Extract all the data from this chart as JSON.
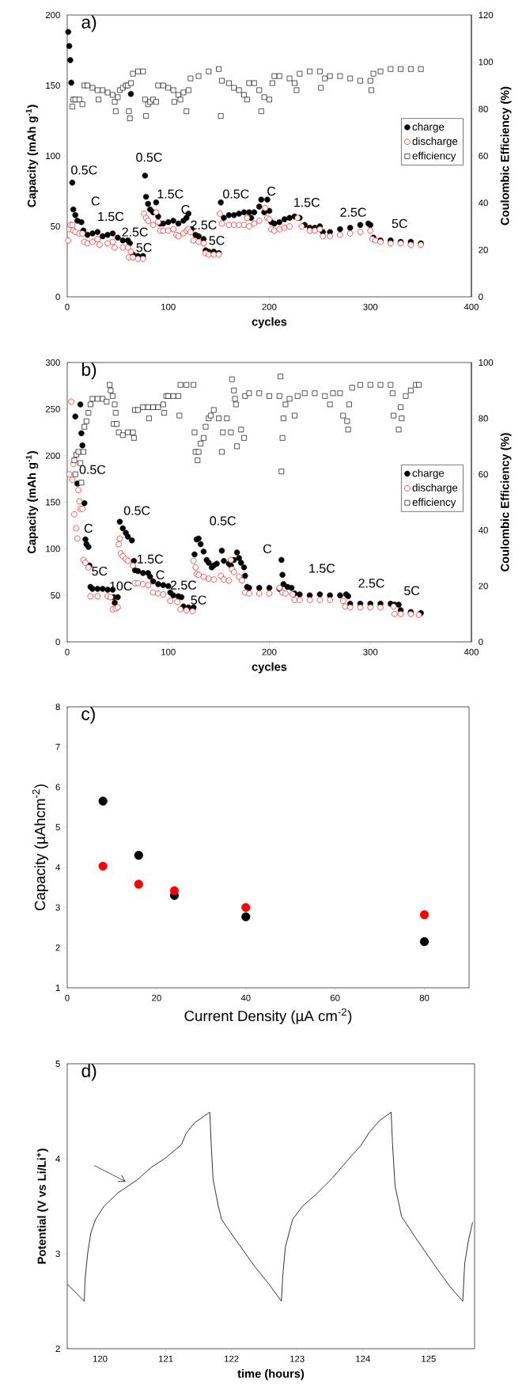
{
  "chart_data": [
    {
      "type": "scatter",
      "title": "a)",
      "xlabel": "cycles",
      "ylabel": "Capacity (mAh g$^{-1}$)",
      "y2label": "Coulombic Efficiency (%)",
      "xlim": [
        0,
        400
      ],
      "xticks": [
        0,
        100,
        200,
        300,
        400
      ],
      "ylim": [
        0,
        200
      ],
      "yticks": [
        0,
        50,
        100,
        150,
        200
      ],
      "y2lim": [
        0,
        120
      ],
      "y2ticks": [
        0,
        20,
        40,
        60,
        80,
        100,
        120
      ],
      "legend": "right",
      "series": [
        {
          "name": "charge",
          "color": "#000000",
          "marker": "circle",
          "x": [
            1,
            2,
            3,
            4,
            5,
            6,
            8,
            10,
            14,
            16,
            20,
            25,
            30,
            35,
            40,
            45,
            50,
            55,
            60,
            62,
            63,
            65,
            70,
            75,
            77,
            78,
            80,
            82,
            85,
            88,
            90,
            92,
            95,
            100,
            105,
            110,
            115,
            118,
            120,
            123,
            127,
            130,
            135,
            137,
            140,
            145,
            150,
            152,
            155,
            160,
            165,
            170,
            175,
            180,
            182,
            185,
            190,
            192,
            195,
            198,
            200,
            202,
            205,
            210,
            215,
            220,
            225,
            230,
            235,
            240,
            245,
            250,
            253,
            260,
            270,
            280,
            290,
            298,
            300,
            303,
            310,
            320,
            330,
            340,
            350
          ],
          "values": [
            188,
            178,
            168,
            152,
            81,
            62,
            58,
            54,
            53,
            47,
            44,
            45,
            46,
            43,
            44,
            45,
            42,
            40,
            40,
            38,
            144,
            30,
            29,
            29,
            86,
            71,
            66,
            62,
            60,
            67,
            57,
            52,
            52,
            53,
            54,
            52,
            54,
            56,
            59,
            48,
            44,
            43,
            41,
            33,
            32,
            32,
            31,
            67,
            56,
            58,
            58,
            59,
            60,
            60,
            56,
            60,
            64,
            69,
            60,
            69,
            61,
            53,
            52,
            53,
            55,
            56,
            57,
            56,
            51,
            49,
            49,
            50,
            46,
            46,
            48,
            49,
            51,
            52,
            51,
            42,
            40,
            40,
            39,
            39,
            38
          ]
        },
        {
          "name": "discharge",
          "color": "#ff0000",
          "marker": "circle",
          "x": [
            1,
            2,
            3,
            5,
            6,
            8,
            12,
            15,
            17,
            20,
            25,
            30,
            32,
            40,
            45,
            47,
            55,
            60,
            61,
            63,
            65,
            70,
            75,
            76,
            78,
            80,
            85,
            88,
            90,
            92,
            95,
            100,
            105,
            108,
            110,
            115,
            118,
            120,
            122,
            125,
            130,
            135,
            137,
            140,
            145,
            150,
            151,
            153,
            160,
            165,
            170,
            175,
            178,
            180,
            185,
            190,
            196,
            198,
            200,
            202,
            205,
            210,
            215,
            220,
            228,
            232,
            240,
            245,
            250,
            253,
            260,
            270,
            280,
            290,
            300,
            302,
            305,
            310,
            320,
            330,
            340,
            350
          ],
          "values": [
            40,
            48,
            51,
            51,
            47,
            46,
            45,
            45,
            39,
            38,
            39,
            41,
            37,
            38,
            39,
            35,
            35,
            35,
            28,
            32,
            28,
            27,
            27,
            59,
            56,
            54,
            51,
            60,
            53,
            47,
            47,
            47,
            48,
            44,
            43,
            45,
            47,
            48,
            46,
            40,
            39,
            38,
            31,
            30,
            30,
            30,
            59,
            52,
            51,
            51,
            51,
            51,
            56,
            50,
            52,
            54,
            63,
            56,
            55,
            48,
            47,
            48,
            49,
            50,
            56,
            50,
            47,
            47,
            48,
            43,
            43,
            44,
            45,
            46,
            47,
            41,
            40,
            39,
            38,
            38,
            37,
            37
          ]
        },
        {
          "name": "efficiency",
          "color": "#000000",
          "marker": "square",
          "axis": "y2",
          "x": [
            5,
            6,
            8,
            12,
            15,
            17,
            20,
            25,
            30,
            31,
            35,
            40,
            45,
            47,
            48,
            50,
            52,
            55,
            58,
            60,
            61,
            62,
            63,
            65,
            70,
            75,
            77,
            78,
            80,
            82,
            85,
            88,
            90,
            95,
            100,
            105,
            106,
            110,
            112,
            115,
            118,
            120,
            122,
            130,
            140,
            150,
            152,
            153,
            160,
            165,
            170,
            175,
            178,
            180,
            185,
            190,
            192,
            195,
            200,
            203,
            205,
            210,
            220,
            225,
            227,
            230,
            240,
            250,
            251,
            255,
            260,
            270,
            280,
            290,
            300,
            301,
            303,
            310,
            320,
            330,
            340,
            350
          ],
          "values": [
            81,
            84,
            84,
            84,
            82,
            90,
            90,
            89,
            88,
            84,
            88,
            87,
            86,
            83,
            79,
            85,
            88,
            89,
            90,
            90,
            79,
            76,
            91,
            95,
            96,
            96,
            84,
            77,
            82,
            83,
            84,
            83,
            90,
            90,
            89,
            88,
            83,
            86,
            84,
            87,
            79,
            88,
            93,
            94,
            96,
            97,
            77,
            92,
            91,
            89,
            88,
            86,
            84,
            91,
            91,
            88,
            79,
            85,
            84,
            91,
            94,
            94,
            93,
            91,
            88,
            95,
            96,
            96,
            89,
            93,
            94,
            94,
            93,
            92,
            92,
            88,
            95,
            96,
            97,
            97,
            97,
            97
          ]
        }
      ],
      "annotations": [
        "0.5C",
        "C",
        "1.5C",
        "2.5C",
        "5C",
        "0.5C",
        "1.5C",
        "C",
        "2.5C",
        "5C",
        "0.5C",
        "C",
        "1.5C",
        "2.5C",
        "5C"
      ]
    },
    {
      "type": "scatter",
      "title": "b)",
      "xlabel": "cycles",
      "ylabel": "Capacity (mAh g$^{-1}$)",
      "y2label": "Coulombic Efficiency (%)",
      "xlim": [
        0,
        400
      ],
      "xticks": [
        0,
        100,
        200,
        300,
        400
      ],
      "ylim": [
        0,
        300
      ],
      "yticks": [
        0,
        50,
        100,
        150,
        200,
        250,
        300
      ],
      "y2lim": [
        0,
        100
      ],
      "y2ticks": [
        0,
        20,
        40,
        60,
        80,
        100
      ],
      "legend": "right",
      "series": [
        {
          "name": "charge",
          "color": "#000000",
          "marker": "circle",
          "x": [
            8,
            10,
            13,
            14,
            15,
            17,
            18,
            19,
            21,
            22,
            23,
            25,
            30,
            35,
            40,
            45,
            46,
            47,
            50,
            52,
            55,
            58,
            60,
            64,
            66,
            67,
            70,
            75,
            80,
            82,
            85,
            90,
            95,
            100,
            102,
            105,
            110,
            113,
            115,
            120,
            125,
            126,
            128,
            130,
            132,
            135,
            138,
            140,
            143,
            145,
            148,
            153,
            155,
            160,
            162,
            165,
            168,
            170,
            172,
            175,
            176,
            178,
            180,
            190,
            200,
            210,
            212,
            213,
            214,
            218,
            222,
            225,
            230,
            240,
            250,
            260,
            270,
            276,
            278,
            280,
            290,
            300,
            310,
            320,
            324,
            328,
            330,
            340,
            350
          ],
          "values": [
            242,
            170,
            255,
            224,
            211,
            149,
            110,
            105,
            102,
            82,
            59,
            57,
            57,
            57,
            56,
            56,
            48,
            42,
            48,
            129,
            122,
            117,
            113,
            109,
            87,
            77,
            76,
            74,
            74,
            70,
            65,
            62,
            61,
            60,
            53,
            50,
            49,
            48,
            38,
            37,
            37,
            94,
            110,
            111,
            105,
            97,
            88,
            85,
            80,
            82,
            84,
            98,
            87,
            84,
            82,
            88,
            96,
            90,
            85,
            80,
            71,
            59,
            58,
            58,
            58,
            57,
            88,
            72,
            62,
            59,
            58,
            52,
            51,
            50,
            51,
            50,
            50,
            51,
            49,
            41,
            41,
            41,
            41,
            41,
            40,
            40,
            34,
            32,
            31
          ]
        },
        {
          "name": "discharge",
          "color": "#ff0000",
          "marker": "circle",
          "x": [
            2,
            4,
            5,
            6,
            7,
            9,
            10,
            11,
            12,
            13,
            15,
            16,
            18,
            21,
            23,
            30,
            40,
            43,
            45,
            48,
            50,
            51,
            52,
            53,
            55,
            58,
            60,
            65,
            67,
            70,
            75,
            80,
            85,
            90,
            95,
            102,
            109,
            112,
            118,
            124,
            125,
            127,
            128,
            130,
            135,
            140,
            145,
            152,
            155,
            160,
            162,
            163,
            165,
            170,
            173,
            176,
            180,
            190,
            200,
            210,
            213,
            216,
            223,
            225,
            230,
            240,
            250,
            260,
            273,
            275,
            280,
            290,
            300,
            310,
            323,
            324,
            330,
            340,
            348
          ],
          "values": [
            180,
            258,
            174,
            191,
            137,
            122,
            111,
            163,
            151,
            143,
            143,
            88,
            85,
            80,
            49,
            49,
            49,
            48,
            35,
            36,
            37,
            105,
            111,
            95,
            92,
            89,
            87,
            82,
            63,
            63,
            62,
            61,
            53,
            52,
            51,
            44,
            43,
            35,
            34,
            33,
            87,
            80,
            73,
            72,
            70,
            68,
            67,
            71,
            67,
            66,
            88,
            78,
            75,
            70,
            66,
            53,
            52,
            52,
            52,
            58,
            53,
            52,
            51,
            45,
            45,
            45,
            45,
            45,
            44,
            38,
            37,
            37,
            37,
            37,
            38,
            30,
            30,
            30,
            29
          ]
        },
        {
          "name": "efficiency",
          "color": "#000000",
          "marker": "square",
          "axis": "y2",
          "x": [
            7,
            8,
            9,
            11,
            13,
            14,
            16,
            17,
            19,
            21,
            23,
            25,
            30,
            35,
            39,
            42,
            43,
            45,
            46,
            47,
            48,
            49,
            51,
            55,
            60,
            65,
            66,
            67,
            70,
            75,
            80,
            81,
            85,
            90,
            95,
            96,
            98,
            100,
            105,
            110,
            111,
            112,
            118,
            125,
            126,
            127,
            129,
            130,
            132,
            135,
            137,
            140,
            142,
            145,
            150,
            153,
            154,
            158,
            162,
            163,
            165,
            166,
            167,
            168,
            172,
            175,
            176,
            180,
            190,
            200,
            210,
            211,
            212,
            213,
            214,
            216,
            220,
            225,
            228,
            235,
            245,
            255,
            260,
            263,
            270,
            273,
            277,
            278,
            279,
            282,
            290,
            300,
            310,
            320,
            322,
            323,
            328,
            330,
            331,
            335,
            340,
            345,
            348
          ],
          "values": [
            65,
            60,
            67,
            68,
            64,
            57,
            68,
            77,
            79,
            82,
            85,
            87,
            87,
            87,
            86,
            92,
            90,
            88,
            78,
            85,
            82,
            78,
            75,
            74,
            75,
            75,
            73,
            83,
            83,
            84,
            84,
            80,
            84,
            84,
            85,
            82,
            88,
            88,
            88,
            88,
            81,
            92,
            92,
            92,
            75,
            68,
            65,
            68,
            71,
            73,
            77,
            80,
            81,
            83,
            80,
            68,
            75,
            80,
            75,
            94,
            90,
            87,
            85,
            70,
            76,
            73,
            88,
            89,
            89,
            88,
            88,
            95,
            61,
            73,
            80,
            85,
            87,
            81,
            88,
            89,
            89,
            88,
            85,
            89,
            89,
            81,
            79,
            76,
            85,
            91,
            92,
            92,
            92,
            92,
            89,
            81,
            76,
            84,
            80,
            88,
            90,
            92,
            92
          ]
        }
      ],
      "annotations": [
        "0.5C",
        "C",
        "5C",
        "10C",
        "0.5C",
        "1.5C",
        "C",
        "2.5C",
        "5C",
        "0.5C",
        "C",
        "1.5C",
        "2.5C",
        "5C"
      ]
    },
    {
      "type": "scatter",
      "title": "c)",
      "xlabel": "Current Density (µA cm$^{-2}$)",
      "ylabel": "Capacity (µAhcm$^{-2}$)",
      "xlim": [
        0,
        90
      ],
      "xticks": [
        0,
        20,
        40,
        60,
        80
      ],
      "ylim": [
        1,
        8
      ],
      "yticks": [
        1,
        2,
        3,
        4,
        5,
        6,
        7,
        8
      ],
      "series": [
        {
          "color": "#000000",
          "marker": "circle",
          "x": [
            8,
            16,
            24,
            40,
            80
          ],
          "values": [
            5.65,
            4.3,
            3.3,
            2.77,
            2.15
          ]
        },
        {
          "color": "#ff0000",
          "marker": "circle",
          "x": [
            8,
            16,
            24,
            40,
            80
          ],
          "values": [
            4.03,
            3.58,
            3.42,
            3.0,
            2.82
          ]
        }
      ]
    },
    {
      "type": "line",
      "title": "d)",
      "xlabel": "time (hours)",
      "ylabel": "Potential (V vs Li/Li$^{+}$)",
      "xlim": [
        119.5,
        125.7
      ],
      "xticks": [
        120,
        121,
        122,
        123,
        124,
        125
      ],
      "ylim": [
        2,
        5
      ],
      "yticks": [
        2,
        3,
        4,
        5
      ],
      "marker": "none",
      "line_style": "solid",
      "series": [
        {
          "color": "#000000",
          "x": [
            119.5,
            119.76,
            119.77,
            119.81,
            119.86,
            119.93,
            120.06,
            120.27,
            120.57,
            120.78,
            121.0,
            121.24,
            121.31,
            121.44,
            121.67,
            121.69,
            121.72,
            121.8,
            121.85,
            122.06,
            122.36,
            122.57,
            122.76,
            122.78,
            122.82,
            122.93,
            123.08,
            123.28,
            123.54,
            123.8,
            123.97,
            124.1,
            124.25,
            124.43,
            124.45,
            124.49,
            124.59,
            124.82,
            125.13,
            125.33,
            125.52,
            125.55,
            125.61,
            125.67
          ],
          "values": [
            2.68,
            2.5,
            2.72,
            3.0,
            3.22,
            3.36,
            3.5,
            3.64,
            3.78,
            3.91,
            4.01,
            4.15,
            4.27,
            4.38,
            4.49,
            4.17,
            3.78,
            3.5,
            3.36,
            3.15,
            2.86,
            2.68,
            2.5,
            2.76,
            3.07,
            3.36,
            3.5,
            3.62,
            3.8,
            4.01,
            4.14,
            4.28,
            4.4,
            4.49,
            4.17,
            3.71,
            3.39,
            3.15,
            2.84,
            2.65,
            2.5,
            2.9,
            3.15,
            3.33
          ]
        }
      ]
    }
  ]
}
